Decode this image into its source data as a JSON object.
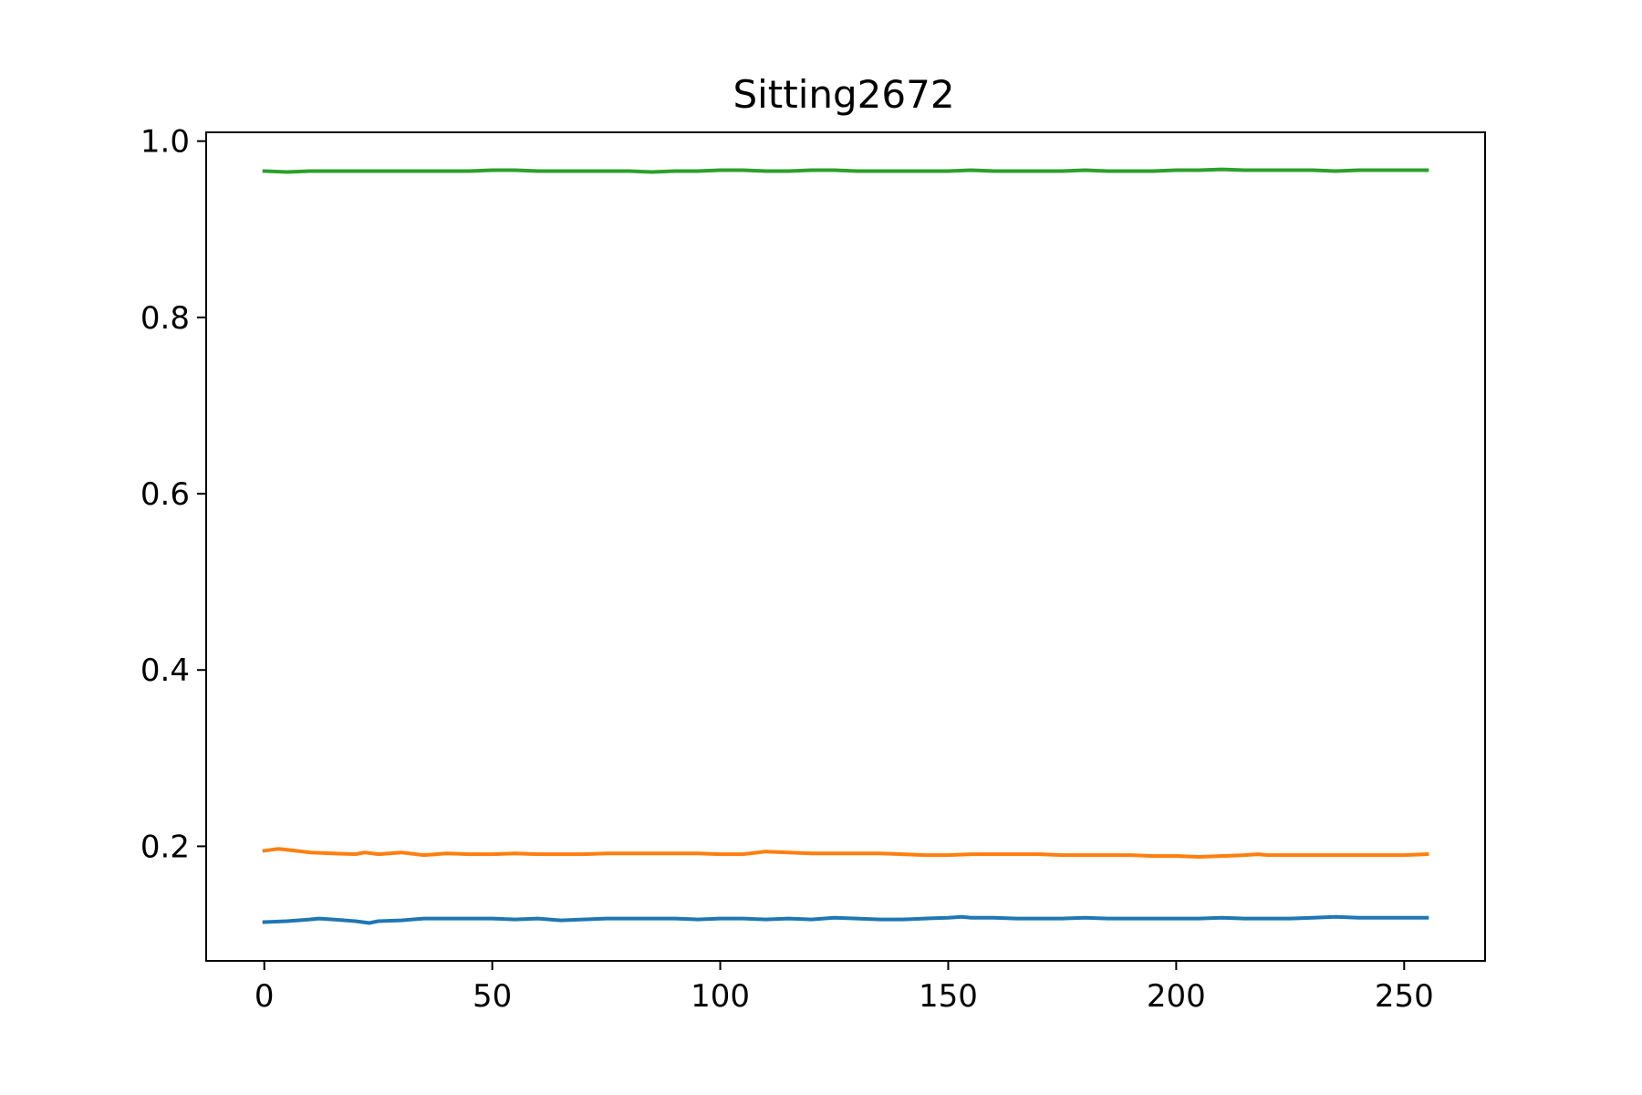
{
  "chart_data": {
    "type": "line",
    "title": "Sitting2672",
    "xlabel": "",
    "ylabel": "",
    "xlim": [
      -12.75,
      267.75
    ],
    "ylim": [
      0.07,
      1.01
    ],
    "x_ticks": [
      0,
      50,
      100,
      150,
      200,
      250
    ],
    "x_tick_labels": [
      "0",
      "50",
      "100",
      "150",
      "200",
      "250"
    ],
    "y_ticks": [
      0.2,
      0.4,
      0.6,
      0.8,
      1.0
    ],
    "y_tick_labels": [
      "0.2",
      "0.4",
      "0.6",
      "0.8",
      "1.0"
    ],
    "grid": false,
    "legend": "none",
    "series": [
      {
        "color": "#1f77b4",
        "x": [
          0,
          5,
          10,
          12,
          15,
          20,
          23,
          25,
          30,
          35,
          40,
          45,
          50,
          55,
          60,
          65,
          70,
          75,
          80,
          85,
          90,
          95,
          100,
          105,
          110,
          115,
          120,
          125,
          130,
          135,
          140,
          145,
          150,
          153,
          155,
          160,
          165,
          170,
          175,
          180,
          185,
          190,
          195,
          200,
          205,
          210,
          215,
          220,
          225,
          230,
          235,
          240,
          245,
          250,
          255
        ],
        "y": [
          0.114,
          0.115,
          0.117,
          0.118,
          0.117,
          0.115,
          0.113,
          0.115,
          0.116,
          0.118,
          0.118,
          0.118,
          0.118,
          0.117,
          0.118,
          0.116,
          0.117,
          0.118,
          0.118,
          0.118,
          0.118,
          0.117,
          0.118,
          0.118,
          0.117,
          0.118,
          0.117,
          0.119,
          0.118,
          0.117,
          0.117,
          0.118,
          0.119,
          0.12,
          0.119,
          0.119,
          0.118,
          0.118,
          0.118,
          0.119,
          0.118,
          0.118,
          0.118,
          0.118,
          0.118,
          0.119,
          0.118,
          0.118,
          0.118,
          0.119,
          0.12,
          0.119,
          0.119,
          0.119,
          0.119
        ]
      },
      {
        "color": "#ff7f0e",
        "x": [
          0,
          3,
          5,
          10,
          15,
          20,
          22,
          25,
          30,
          35,
          40,
          45,
          50,
          55,
          60,
          65,
          70,
          75,
          80,
          85,
          90,
          95,
          100,
          105,
          110,
          115,
          120,
          125,
          130,
          135,
          140,
          145,
          150,
          155,
          160,
          165,
          170,
          175,
          180,
          185,
          190,
          195,
          200,
          205,
          210,
          215,
          218,
          220,
          225,
          230,
          235,
          240,
          245,
          250,
          255
        ],
        "y": [
          0.195,
          0.197,
          0.196,
          0.193,
          0.192,
          0.191,
          0.193,
          0.191,
          0.193,
          0.19,
          0.192,
          0.191,
          0.191,
          0.192,
          0.191,
          0.191,
          0.191,
          0.192,
          0.192,
          0.192,
          0.192,
          0.192,
          0.191,
          0.191,
          0.194,
          0.193,
          0.192,
          0.192,
          0.192,
          0.192,
          0.191,
          0.19,
          0.19,
          0.191,
          0.191,
          0.191,
          0.191,
          0.19,
          0.19,
          0.19,
          0.19,
          0.189,
          0.189,
          0.188,
          0.189,
          0.19,
          0.191,
          0.19,
          0.19,
          0.19,
          0.19,
          0.19,
          0.19,
          0.19,
          0.191
        ]
      },
      {
        "color": "#2ca02c",
        "x": [
          0,
          5,
          10,
          15,
          20,
          25,
          30,
          35,
          40,
          45,
          50,
          55,
          60,
          65,
          70,
          75,
          80,
          85,
          90,
          95,
          100,
          105,
          110,
          115,
          120,
          125,
          130,
          135,
          140,
          145,
          150,
          155,
          160,
          165,
          170,
          175,
          180,
          185,
          190,
          195,
          200,
          205,
          210,
          215,
          220,
          225,
          230,
          235,
          240,
          245,
          250,
          255
        ],
        "y": [
          0.966,
          0.965,
          0.966,
          0.966,
          0.966,
          0.966,
          0.966,
          0.966,
          0.966,
          0.966,
          0.967,
          0.967,
          0.966,
          0.966,
          0.966,
          0.966,
          0.966,
          0.965,
          0.966,
          0.966,
          0.967,
          0.967,
          0.966,
          0.966,
          0.967,
          0.967,
          0.966,
          0.966,
          0.966,
          0.966,
          0.966,
          0.967,
          0.966,
          0.966,
          0.966,
          0.966,
          0.967,
          0.966,
          0.966,
          0.966,
          0.967,
          0.967,
          0.968,
          0.967,
          0.967,
          0.967,
          0.967,
          0.966,
          0.967,
          0.967,
          0.967,
          0.967
        ]
      }
    ]
  }
}
